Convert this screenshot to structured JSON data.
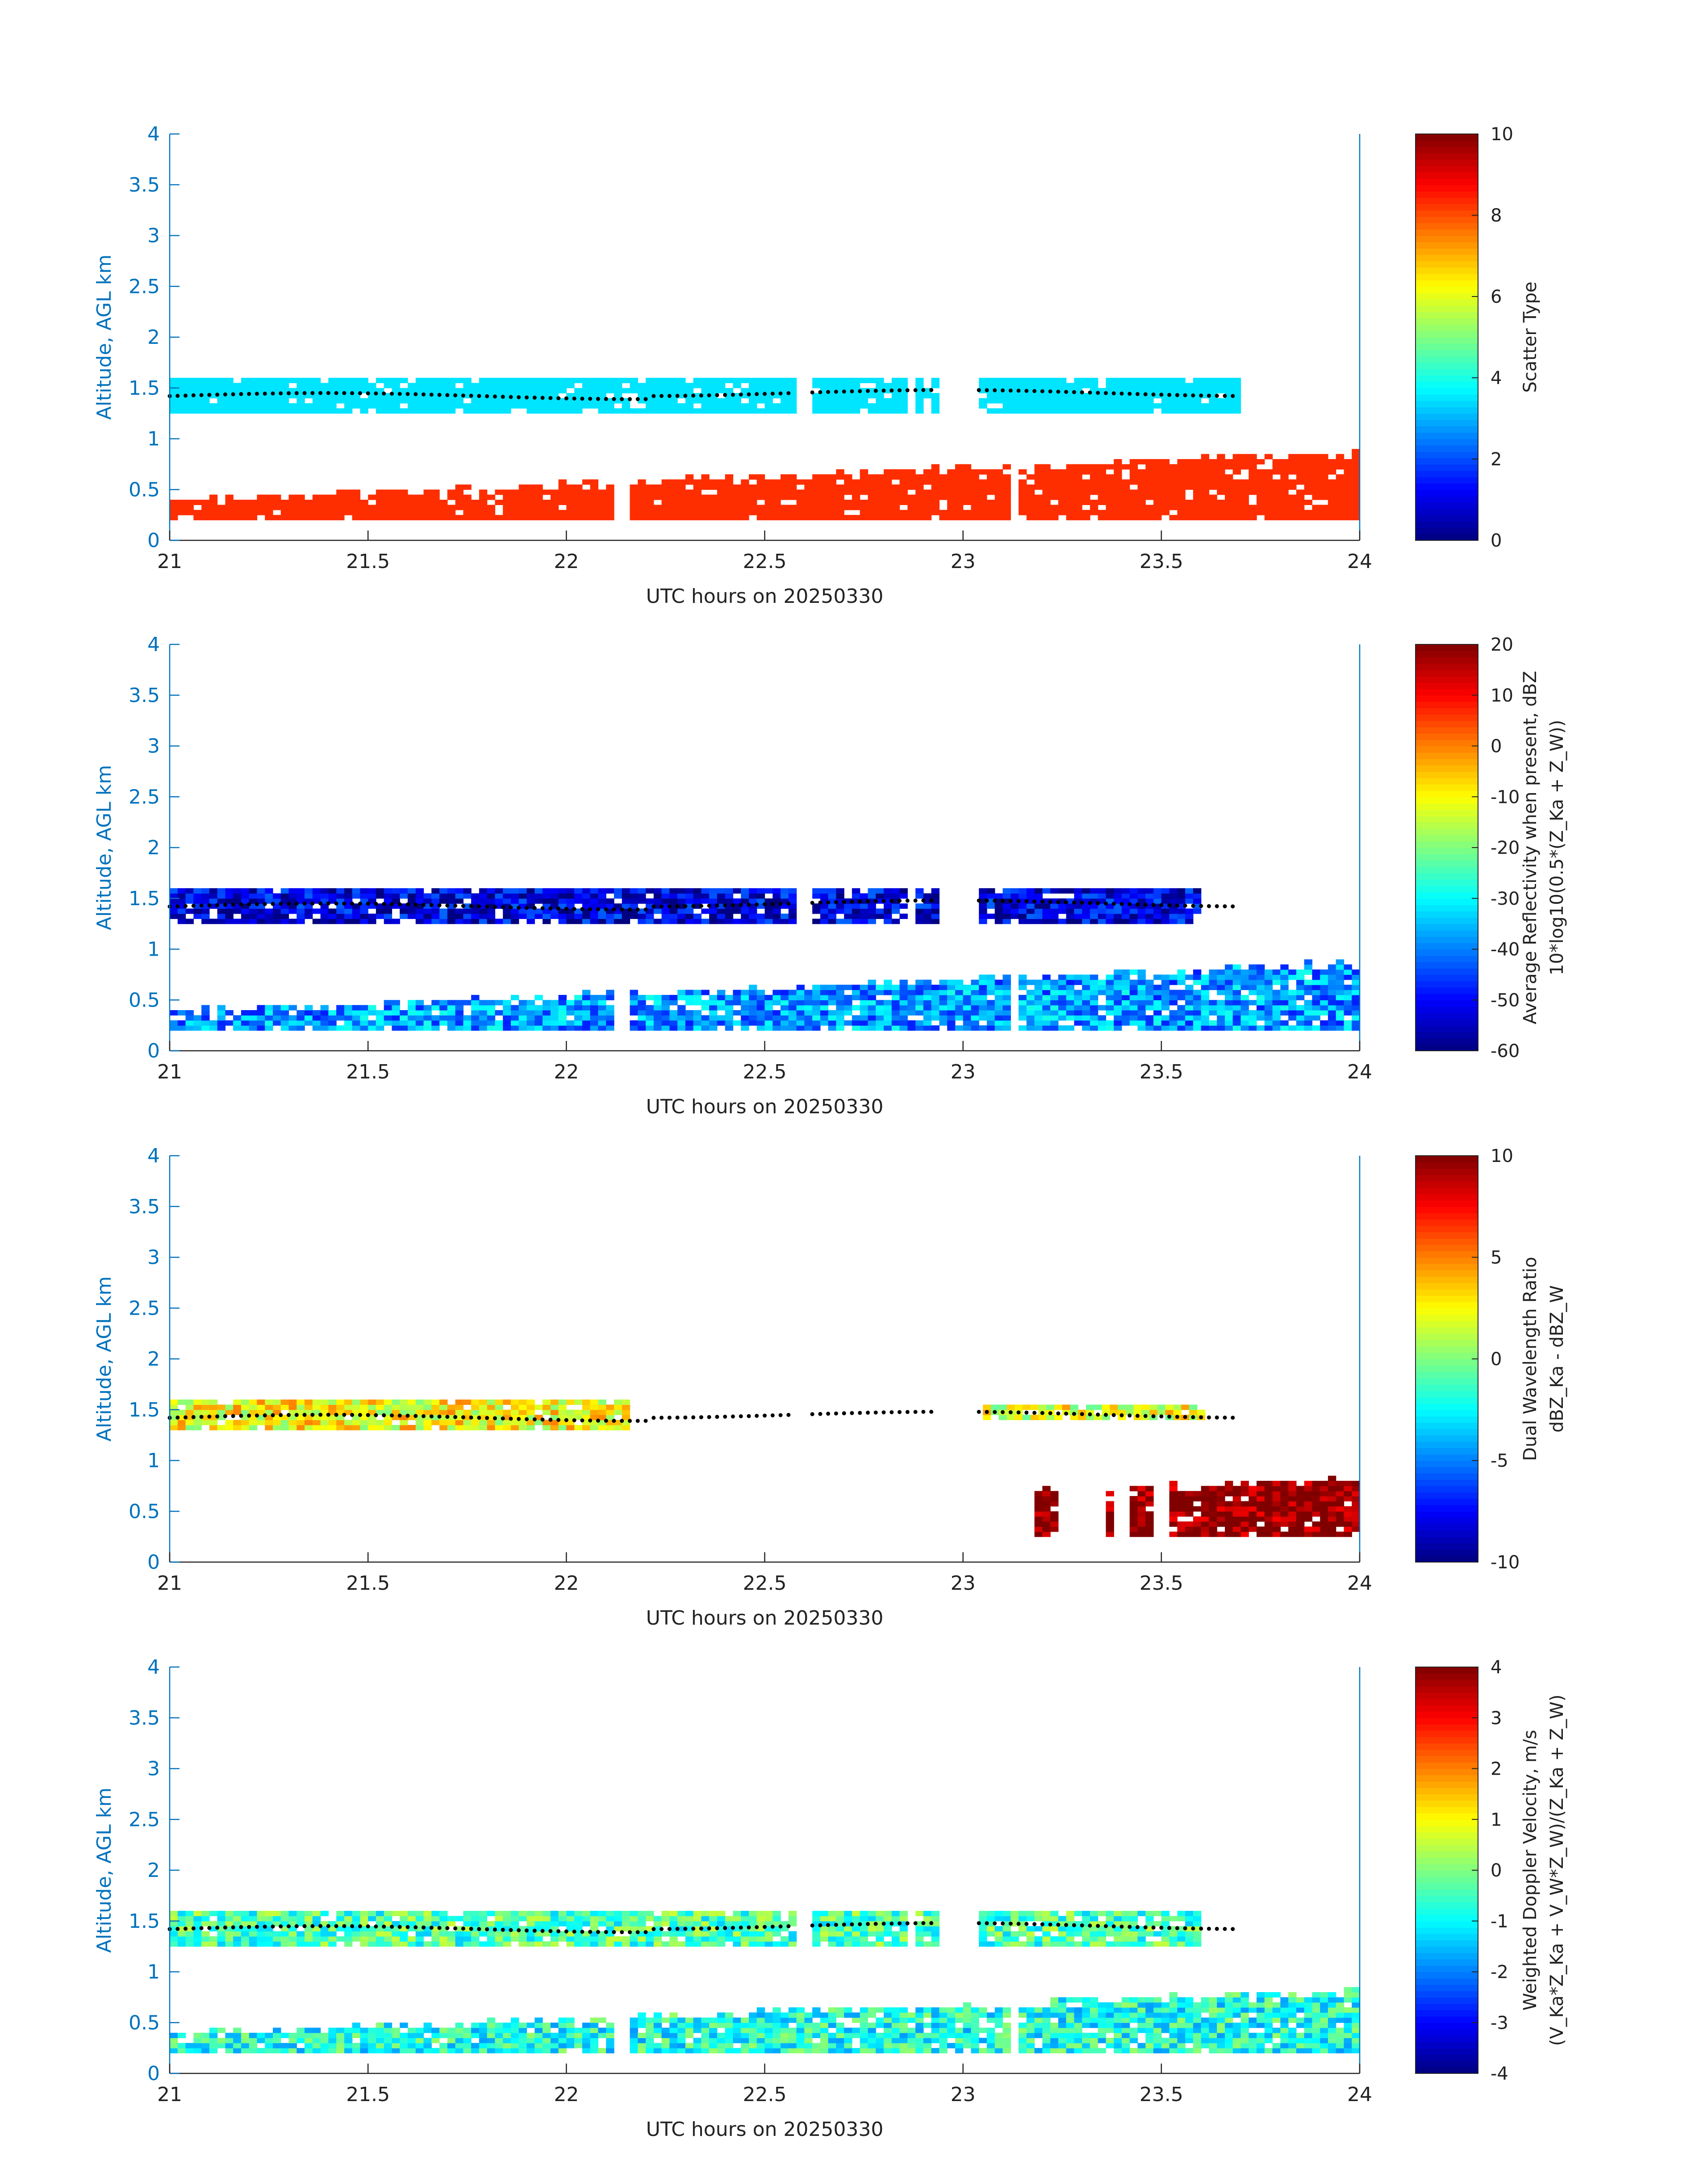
{
  "colors": {
    "axis": "#0072BD",
    "text": "#222222",
    "dots": "#000000",
    "background": "#ffffff"
  },
  "chart_data": [
    {
      "type": "heatmap",
      "title": "",
      "xlabel": "UTC hours on 20250330",
      "ylabel": "Altitude, AGL km",
      "xlim": [
        21,
        24
      ],
      "ylim": [
        0,
        4
      ],
      "x_ticks": [
        "21",
        "21.5",
        "22",
        "22.5",
        "23",
        "23.5",
        "24"
      ],
      "y_ticks": [
        "0",
        "0.5",
        "1",
        "1.5",
        "2",
        "2.5",
        "3",
        "3.5",
        "4"
      ],
      "colorbar": {
        "label": "Scatter Type",
        "label2": "",
        "range": [
          0,
          10
        ],
        "ticks": [
          "0",
          "2",
          "4",
          "6",
          "8",
          "10"
        ],
        "colormap": "jet"
      },
      "cloud_top_dots": true,
      "layers": [
        {
          "name": "upper",
          "x_range": [
            21,
            23.7
          ],
          "alt_range": [
            1.25,
            1.6
          ],
          "value": 3.5,
          "gaps": [
            [
              22.57,
              22.6
            ],
            [
              22.84,
              22.86
            ],
            [
              22.92,
              23.02
            ]
          ]
        },
        {
          "name": "lower",
          "x_range": [
            21,
            24
          ],
          "alt_range": [
            0.2,
            0.8
          ],
          "value": 8.3,
          "gaps": [
            [
              22.1,
              22.15
            ],
            [
              23.1,
              23.13
            ]
          ]
        }
      ]
    },
    {
      "type": "heatmap",
      "title": "",
      "xlabel": "UTC hours on 20250330",
      "ylabel": "Altitude, AGL km",
      "xlim": [
        21,
        24
      ],
      "ylim": [
        0,
        4
      ],
      "x_ticks": [
        "21",
        "21.5",
        "22",
        "22.5",
        "23",
        "23.5",
        "24"
      ],
      "y_ticks": [
        "0",
        "0.5",
        "1",
        "1.5",
        "2",
        "2.5",
        "3",
        "3.5",
        "4"
      ],
      "colorbar": {
        "label": "Average Reflectivity when present, dBZ",
        "label2": "10*log10(0.5*(Z_Ka + Z_W))",
        "range": [
          -60,
          20
        ],
        "ticks": [
          "-60",
          "-50",
          "-40",
          "-30",
          "-20",
          "-10",
          "0",
          "10",
          "20"
        ],
        "colormap": "jet"
      },
      "cloud_top_dots": true,
      "layers": [
        {
          "name": "upper",
          "x_range": [
            21,
            23.6
          ],
          "alt_range": [
            1.25,
            1.6
          ],
          "value": -52,
          "gaps": [
            [
              22.57,
              22.6
            ],
            [
              22.84,
              22.86
            ],
            [
              22.92,
              23.02
            ]
          ]
        },
        {
          "name": "lower",
          "x_range": [
            21,
            24
          ],
          "alt_range": [
            0.2,
            0.8
          ],
          "value": -38,
          "gaps": [
            [
              22.1,
              22.15
            ],
            [
              23.1,
              23.13
            ]
          ]
        }
      ]
    },
    {
      "type": "heatmap",
      "title": "",
      "xlabel": "UTC hours on 20250330",
      "ylabel": "Altitude, AGL km",
      "xlim": [
        21,
        24
      ],
      "ylim": [
        0,
        4
      ],
      "x_ticks": [
        "21",
        "21.5",
        "22",
        "22.5",
        "23",
        "23.5",
        "24"
      ],
      "y_ticks": [
        "0",
        "0.5",
        "1",
        "1.5",
        "2",
        "2.5",
        "3",
        "3.5",
        "4"
      ],
      "colorbar": {
        "label": "Dual Wavelength Ratio",
        "label2": "dBZ_Ka - dBZ_W",
        "range": [
          -10,
          10
        ],
        "ticks": [
          "-10",
          "-5",
          "0",
          "5",
          "10"
        ],
        "colormap": "jet"
      },
      "cloud_top_dots": true,
      "layers": [
        {
          "name": "upper",
          "x_range": [
            21,
            22.15
          ],
          "alt_range": [
            1.3,
            1.6
          ],
          "value": 2.5
        },
        {
          "name": "upper-late",
          "x_range": [
            23.05,
            23.6
          ],
          "alt_range": [
            1.4,
            1.55
          ],
          "value": 2.0
        },
        {
          "name": "lower",
          "x_range": [
            23.18,
            24
          ],
          "alt_range": [
            0.25,
            0.75
          ],
          "value": 10
        }
      ]
    },
    {
      "type": "heatmap",
      "title": "",
      "xlabel": "UTC hours on 20250330",
      "ylabel": "Altitude, AGL km",
      "xlim": [
        21,
        24
      ],
      "ylim": [
        0,
        4
      ],
      "x_ticks": [
        "21",
        "21.5",
        "22",
        "22.5",
        "23",
        "23.5",
        "24"
      ],
      "y_ticks": [
        "0",
        "0.5",
        "1",
        "1.5",
        "2",
        "2.5",
        "3",
        "3.5",
        "4"
      ],
      "colorbar": {
        "label": "Weighted Doppler Velocity, m/s",
        "label2": "(V_Ka*Z_Ka + V_W*Z_W)/(Z_Ka + Z_W)",
        "range": [
          -4,
          4
        ],
        "ticks": [
          "-4",
          "-3",
          "-2",
          "-1",
          "0",
          "1",
          "2",
          "3",
          "4"
        ],
        "colormap": "jet"
      },
      "cloud_top_dots": true,
      "layers": [
        {
          "name": "upper",
          "x_range": [
            21,
            23.6
          ],
          "alt_range": [
            1.25,
            1.6
          ],
          "value": -0.4,
          "gaps": [
            [
              22.57,
              22.6
            ],
            [
              22.84,
              22.86
            ],
            [
              22.92,
              23.02
            ]
          ]
        },
        {
          "name": "lower",
          "x_range": [
            21,
            24
          ],
          "alt_range": [
            0.2,
            0.75
          ],
          "value": -0.8,
          "gaps": [
            [
              22.1,
              22.15
            ],
            [
              23.1,
              23.13
            ]
          ]
        }
      ]
    }
  ]
}
